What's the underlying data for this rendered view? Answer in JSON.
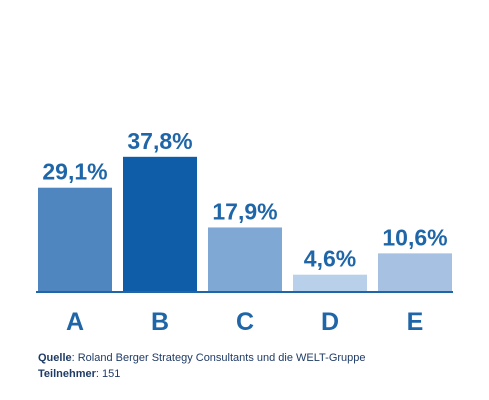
{
  "chart_data": {
    "type": "bar",
    "categories": [
      "A",
      "B",
      "C",
      "D",
      "E"
    ],
    "values": [
      29.1,
      37.8,
      17.9,
      4.6,
      10.6
    ],
    "value_labels": [
      "29,1%",
      "37,8%",
      "17,9%",
      "4,6%",
      "10,6%"
    ],
    "colors": [
      "#4f86c0",
      "#0f5da8",
      "#7fa8d4",
      "#b9d0ea",
      "#a6c1e1"
    ],
    "label_color": "#1f66a8",
    "ylim": [
      0,
      40
    ],
    "grid": false,
    "title": "",
    "xlabel": "",
    "ylabel": ""
  },
  "footer": {
    "source_key": "Quelle",
    "source_text": ": Roland Berger Strategy Consultants und die WELT-Gruppe",
    "participants_key": "Teilnehmer",
    "participants_text": ": 151"
  }
}
